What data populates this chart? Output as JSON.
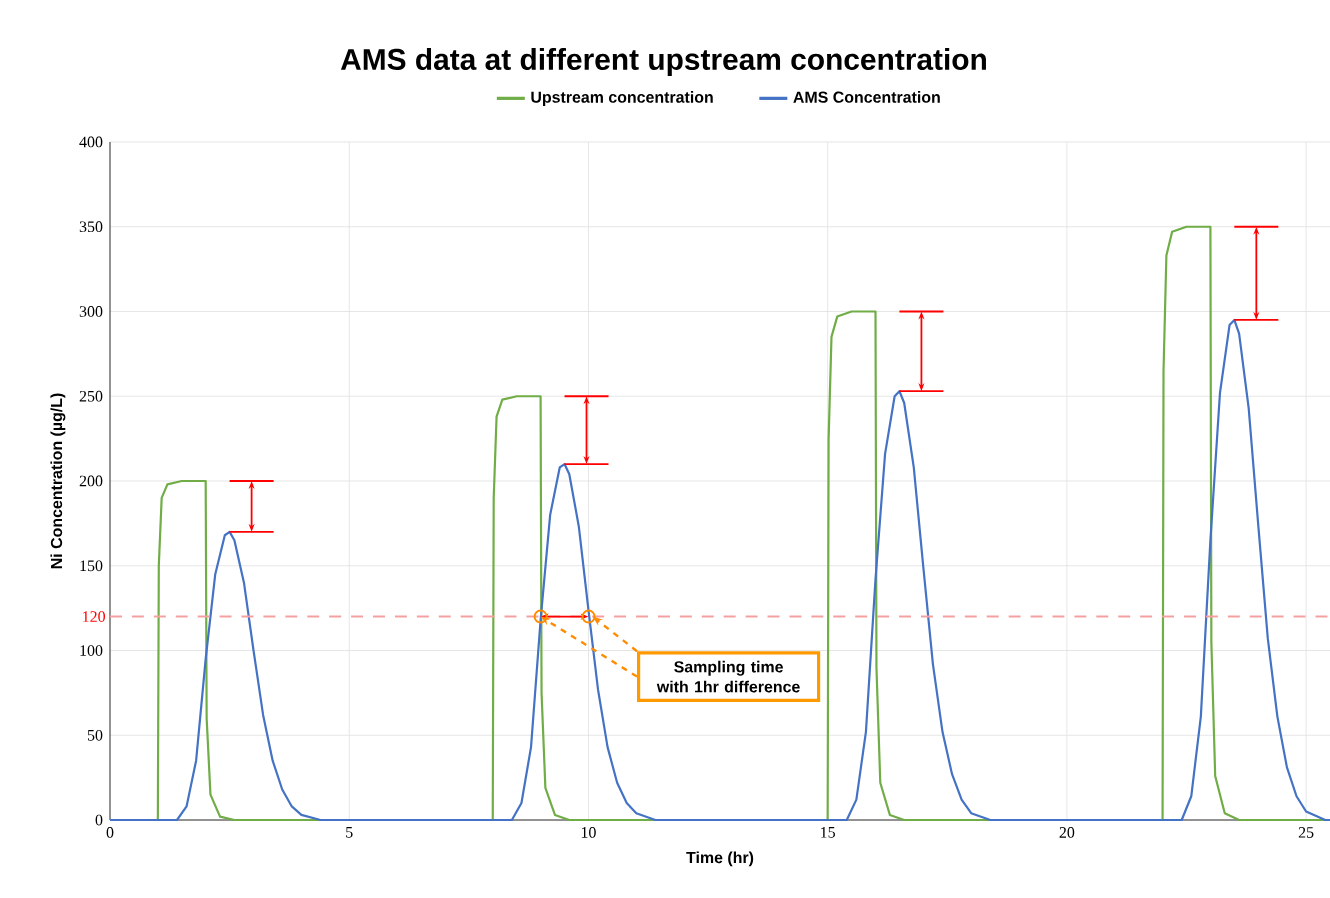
{
  "chart_data": {
    "type": "line",
    "title": "AMS data at different upstream concentration",
    "xlabel": "Time (hr)",
    "ylabel": "Ni Concentration (µg/L)",
    "xlim": [
      0,
      25.5
    ],
    "ylim": [
      0,
      400
    ],
    "xticks": [
      0,
      5,
      10,
      15,
      20,
      25
    ],
    "yticks": [
      0,
      50,
      100,
      150,
      200,
      250,
      300,
      350,
      400
    ],
    "grid": true,
    "legend": "top",
    "marker": "none",
    "line_style": "solid",
    "series": [
      {
        "name": "Upstream concentration",
        "color": "#70ad47",
        "x": [
          0,
          1,
          1.02,
          1.08,
          1.2,
          1.5,
          2,
          2.02,
          2.1,
          2.3,
          2.6,
          8,
          8.02,
          8.08,
          8.2,
          8.5,
          9,
          9.02,
          9.1,
          9.3,
          9.6,
          15,
          15.02,
          15.08,
          15.2,
          15.5,
          16,
          16.02,
          16.1,
          16.3,
          16.6,
          22,
          22.02,
          22.08,
          22.2,
          22.5,
          23,
          23.02,
          23.1,
          23.3,
          23.6,
          25.5
        ],
        "values": [
          0,
          0,
          150,
          190,
          198,
          200,
          200,
          60,
          15,
          2,
          0,
          0,
          190,
          238,
          248,
          250,
          250,
          75,
          19,
          3,
          0,
          0,
          225,
          285,
          297,
          300,
          300,
          90,
          22,
          3,
          0,
          0,
          265,
          333,
          347,
          350,
          350,
          105,
          26,
          4,
          0,
          0
        ]
      },
      {
        "name": "AMS Concentration",
        "color": "#4472c4",
        "x": [
          0,
          1.4,
          1.6,
          1.8,
          2.0,
          2.2,
          2.4,
          2.5,
          2.6,
          2.8,
          3.0,
          3.2,
          3.4,
          3.6,
          3.8,
          4.0,
          4.4,
          8.4,
          8.6,
          8.8,
          9.0,
          9.2,
          9.4,
          9.5,
          9.6,
          9.8,
          10.0,
          10.2,
          10.4,
          10.6,
          10.8,
          11.0,
          11.4,
          15.4,
          15.6,
          15.8,
          16.0,
          16.2,
          16.4,
          16.5,
          16.6,
          16.8,
          17.0,
          17.2,
          17.4,
          17.6,
          17.8,
          18.0,
          18.4,
          22.4,
          22.6,
          22.8,
          23.0,
          23.2,
          23.4,
          23.5,
          23.6,
          23.8,
          24.0,
          24.2,
          24.4,
          24.6,
          24.8,
          25.0,
          25.4,
          25.5
        ],
        "values": [
          0,
          0,
          8,
          35,
          95,
          145,
          168,
          170,
          165,
          140,
          100,
          62,
          35,
          18,
          8,
          3,
          0,
          0,
          10,
          43,
          118,
          180,
          208,
          210,
          204,
          173,
          124,
          77,
          43,
          22,
          10,
          4,
          0,
          0,
          12,
          52,
          142,
          216,
          250,
          253,
          246,
          208,
          149,
          92,
          52,
          27,
          12,
          4,
          0,
          0,
          14,
          61,
          165,
          252,
          292,
          295,
          287,
          243,
          174,
          107,
          61,
          31,
          14,
          5,
          0,
          0
        ]
      }
    ],
    "ref_lines": [
      {
        "axis": "y",
        "value": 120,
        "label": "120",
        "color": "#f4a0a0",
        "line_style": "dashed"
      }
    ],
    "annotations": [
      {
        "text": "Sampling time with 1hr difference",
        "x": 9,
        "y": 120
      }
    ]
  }
}
